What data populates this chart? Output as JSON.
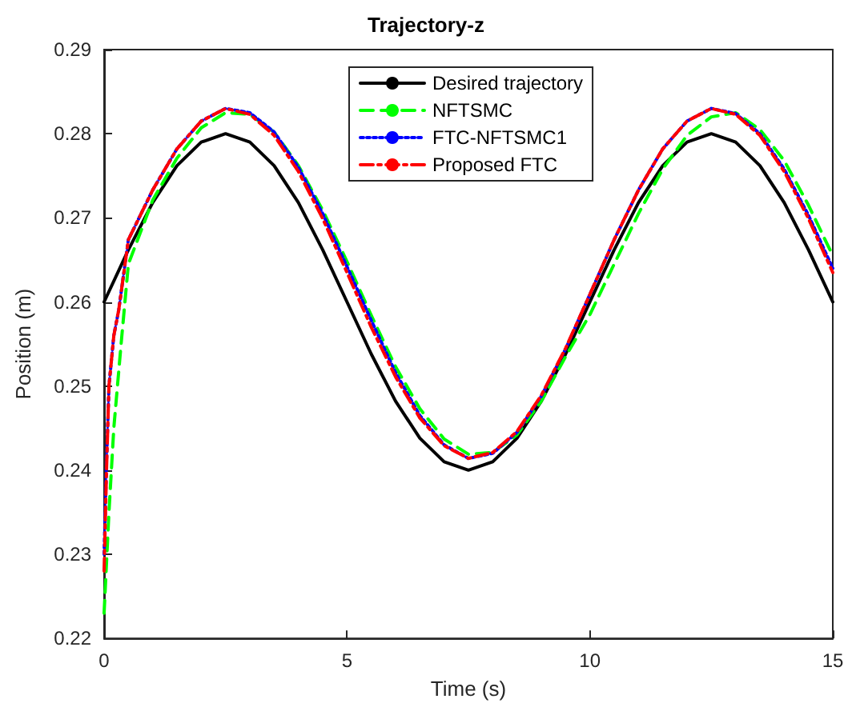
{
  "chart_data": {
    "type": "line",
    "title": "Trajectory-z",
    "xlabel": "Time (s)",
    "ylabel": "Position (m)",
    "xlim": [
      0,
      15
    ],
    "xticks": [
      0,
      5,
      10,
      15
    ],
    "ylim": [
      0.22,
      0.29
    ],
    "yticks": [
      0.22,
      0.23,
      0.24,
      0.25,
      0.26,
      0.27,
      0.28,
      0.29
    ],
    "grid": false,
    "legend": "top",
    "marker": "none",
    "series": [
      {
        "name": "Desired trajectory",
        "color": "#000000",
        "line_style": "solid",
        "x": [
          0,
          0.5,
          1,
          1.5,
          2,
          2.5,
          3,
          3.5,
          4,
          4.5,
          5,
          5.5,
          6,
          6.5,
          7,
          7.5,
          8,
          8.5,
          9,
          9.5,
          10,
          10.5,
          11,
          11.5,
          12,
          12.5,
          13,
          13.5,
          14,
          14.5,
          15
        ],
        "values": [
          0.26,
          0.2662,
          0.2718,
          0.2762,
          0.279,
          0.28,
          0.279,
          0.2762,
          0.2718,
          0.2662,
          0.26,
          0.2538,
          0.2482,
          0.2438,
          0.241,
          0.24,
          0.241,
          0.2438,
          0.2482,
          0.2538,
          0.26,
          0.2662,
          0.2718,
          0.2762,
          0.279,
          0.28,
          0.279,
          0.2762,
          0.2718,
          0.2662,
          0.26
        ]
      },
      {
        "name": "NFTSMC",
        "color": "#00ff00",
        "line_style": "dashed",
        "x": [
          0,
          0.1,
          0.2,
          0.35,
          0.5,
          1,
          1.5,
          2,
          2.5,
          3,
          3.5,
          4,
          4.5,
          5,
          5.5,
          6,
          6.5,
          7,
          7.5,
          8,
          8.5,
          9,
          9.5,
          10,
          10.5,
          11,
          11.5,
          12,
          12.5,
          13,
          13.5,
          14,
          14.5,
          15
        ],
        "values": [
          0.223,
          0.235,
          0.245,
          0.255,
          0.2645,
          0.2721,
          0.2771,
          0.2807,
          0.2825,
          0.2823,
          0.2802,
          0.2762,
          0.2709,
          0.2648,
          0.2584,
          0.2523,
          0.2473,
          0.2437,
          0.2419,
          0.2421,
          0.2442,
          0.2482,
          0.2535,
          0.2585,
          0.2645,
          0.2705,
          0.2758,
          0.2798,
          0.282,
          0.2825,
          0.2805,
          0.2768,
          0.2715,
          0.2655
        ]
      },
      {
        "name": "FTC-NFTSMC1",
        "color": "#0000ff",
        "line_style": "dotted",
        "x": [
          0,
          0.05,
          0.1,
          0.2,
          0.3,
          0.5,
          1,
          1.5,
          2,
          2.5,
          3,
          3.5,
          4,
          4.5,
          5,
          5.5,
          6,
          6.5,
          7,
          7.5,
          8,
          8.5,
          9,
          9.5,
          10,
          10.5,
          11,
          11.5,
          12,
          12.5,
          13,
          13.5,
          14,
          14.5,
          15
        ],
        "values": [
          0.23,
          0.241,
          0.25,
          0.256,
          0.259,
          0.2674,
          0.2733,
          0.2782,
          0.2815,
          0.283,
          0.2825,
          0.2802,
          0.276,
          0.2705,
          0.2642,
          0.2578,
          0.2516,
          0.2465,
          0.243,
          0.2414,
          0.242,
          0.2445,
          0.2488,
          0.2544,
          0.2609,
          0.2674,
          0.2733,
          0.2782,
          0.2815,
          0.283,
          0.2824,
          0.28,
          0.2758,
          0.2703,
          0.264
        ]
      },
      {
        "name": "Proposed FTC",
        "color": "#ff0000",
        "line_style": "dashdot",
        "x": [
          0,
          0.05,
          0.1,
          0.2,
          0.3,
          0.5,
          1,
          1.5,
          2,
          2.5,
          3,
          3.5,
          4,
          4.5,
          5,
          5.5,
          6,
          6.5,
          7,
          7.5,
          8,
          8.5,
          9,
          9.5,
          10,
          10.5,
          11,
          11.5,
          12,
          12.5,
          13,
          13.5,
          14,
          14.5,
          15
        ],
        "values": [
          0.228,
          0.24,
          0.25,
          0.256,
          0.259,
          0.2674,
          0.2733,
          0.2782,
          0.2815,
          0.283,
          0.2823,
          0.2798,
          0.2755,
          0.2699,
          0.2635,
          0.257,
          0.2511,
          0.2462,
          0.2429,
          0.2414,
          0.2421,
          0.2446,
          0.2489,
          0.2545,
          0.2609,
          0.2674,
          0.2733,
          0.2782,
          0.2815,
          0.283,
          0.2823,
          0.2798,
          0.2755,
          0.2699,
          0.2635
        ]
      }
    ]
  }
}
